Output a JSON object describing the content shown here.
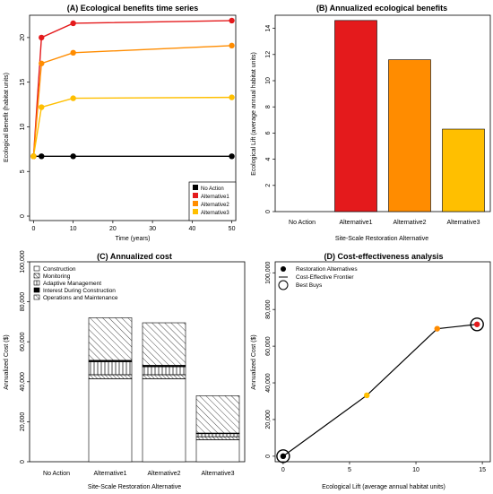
{
  "colors": {
    "no_action": "#000000",
    "alt1": "#E41A1C",
    "alt2": "#FF8C00",
    "alt3": "#FFBF00"
  },
  "chart_data": [
    {
      "type": "line",
      "title": "(A) Ecological benefits time series",
      "xlabel": "Time (years)",
      "ylabel": "Ecological Benefit (habitat units)",
      "xlim": [
        -1,
        51
      ],
      "ylim": [
        -0.5,
        22.5
      ],
      "xticks": [
        0,
        10,
        20,
        30,
        40,
        50
      ],
      "yticks": [
        0,
        5,
        10,
        15,
        20
      ],
      "legend_position": "bottom-right",
      "grid": false,
      "series": [
        {
          "name": "No Action",
          "color": "#000000",
          "x": [
            0,
            2,
            10,
            50
          ],
          "y": [
            6.7,
            6.7,
            6.7,
            6.7
          ]
        },
        {
          "name": "Alternative1",
          "color": "#E41A1C",
          "x": [
            0,
            2,
            10,
            50
          ],
          "y": [
            6.7,
            20.0,
            21.6,
            21.9
          ]
        },
        {
          "name": "Alternative2",
          "color": "#FF8C00",
          "x": [
            0,
            2,
            10,
            50
          ],
          "y": [
            6.7,
            17.1,
            18.3,
            19.1
          ]
        },
        {
          "name": "Alternative3",
          "color": "#FFBF00",
          "x": [
            0,
            2,
            10,
            50
          ],
          "y": [
            6.7,
            12.2,
            13.2,
            13.3
          ]
        }
      ]
    },
    {
      "type": "bar",
      "title": "(B) Annualized ecological benefits",
      "xlabel": "Site-Scale Restoration Alternative",
      "ylabel": "Ecological Lift (average annual habitat units)",
      "categories": [
        "No Action",
        "Alternative1",
        "Alternative2",
        "Alternative3"
      ],
      "values": [
        0,
        14.6,
        11.6,
        6.3
      ],
      "bar_colors": [
        "#000000",
        "#E41A1C",
        "#FF8C00",
        "#FFBF00"
      ],
      "ylim": [
        0,
        15
      ],
      "yticks": [
        0,
        2,
        4,
        6,
        8,
        10,
        12,
        14
      ],
      "grid": false
    },
    {
      "type": "bar",
      "stacked": true,
      "title": "(C) Annualized cost",
      "xlabel": "Site-Scale Restoration Alternative",
      "ylabel": "Annualized Cost ($)",
      "categories": [
        "No Action",
        "Alternative1",
        "Alternative2",
        "Alternative3"
      ],
      "ylim": [
        0,
        100000
      ],
      "yticks": [
        0,
        20000,
        40000,
        60000,
        80000,
        100000
      ],
      "ytick_labels": [
        "0",
        "20,000",
        "40,000",
        "60,000",
        "80,000",
        "100,000"
      ],
      "legend_position": "top-left",
      "series": [
        {
          "name": "Construction",
          "pattern": "blank",
          "values": [
            0,
            41500,
            41500,
            11000
          ]
        },
        {
          "name": "Monitoring",
          "pattern": "dense-diagonal",
          "values": [
            0,
            2000,
            2000,
            1500
          ]
        },
        {
          "name": "Adaptive Management",
          "pattern": "vertical-lines",
          "values": [
            0,
            6500,
            4000,
            1500
          ]
        },
        {
          "name": "Interest During Construction",
          "pattern": "solid-black",
          "values": [
            0,
            700,
            700,
            300
          ]
        },
        {
          "name": "Operations and Maintenance",
          "pattern": "diagonal",
          "values": [
            0,
            21300,
            21300,
            18700
          ]
        }
      ]
    },
    {
      "type": "scatter",
      "title": "(D) Cost-effectiveness analysis",
      "xlabel": "Ecological Lift (average annual habitat units)",
      "ylabel": "Annualized Cost ($)",
      "xlim": [
        -0.6,
        15.6
      ],
      "ylim": [
        -3000,
        106000
      ],
      "xticks": [
        0,
        5,
        10,
        15
      ],
      "yticks": [
        0,
        20000,
        40000,
        60000,
        80000,
        100000
      ],
      "ytick_labels": [
        "0",
        "20,000",
        "40,000",
        "60,000",
        "80,000",
        "100,000"
      ],
      "legend_position": "top-left",
      "legend": [
        "Restoration Alternatives",
        "Cost-Effective Frontier",
        "Best Buys"
      ],
      "points": [
        {
          "x": 0,
          "y": 0,
          "color": "#000000",
          "best_buy": true
        },
        {
          "x": 6.3,
          "y": 33200,
          "color": "#FFBF00",
          "best_buy": false
        },
        {
          "x": 11.6,
          "y": 69500,
          "color": "#FF8C00",
          "best_buy": false
        },
        {
          "x": 14.6,
          "y": 71900,
          "color": "#E41A1C",
          "best_buy": true
        }
      ],
      "frontier": [
        [
          0,
          0
        ],
        [
          6.3,
          33200
        ],
        [
          11.6,
          69500
        ],
        [
          14.6,
          71900
        ]
      ]
    }
  ]
}
